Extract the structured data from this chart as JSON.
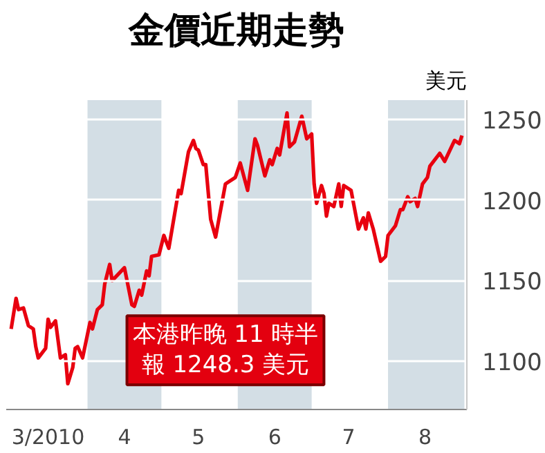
{
  "chart_data": {
    "type": "line",
    "title": "金價近期走勢",
    "ylabel": "美元",
    "x": [
      "2010-03-01",
      "2010-03-03",
      "2010-03-04",
      "2010-03-06",
      "2010-03-08",
      "2010-03-10",
      "2010-03-11",
      "2010-03-12",
      "2010-03-15",
      "2010-03-16",
      "2010-03-17",
      "2010-03-19",
      "2010-03-21",
      "2010-03-23",
      "2010-03-24",
      "2010-03-26",
      "2010-03-27",
      "2010-03-28",
      "2010-03-30",
      "2010-04-02",
      "2010-04-03",
      "2010-04-05",
      "2010-04-07",
      "2010-04-08",
      "2010-04-10",
      "2010-04-11",
      "2010-04-16",
      "2010-04-19",
      "2010-04-20",
      "2010-04-22",
      "2010-04-23",
      "2010-04-25",
      "2010-04-26",
      "2010-04-27",
      "2010-04-30",
      "2010-05-02",
      "2010-05-04",
      "2010-05-08",
      "2010-05-09",
      "2010-05-12",
      "2010-05-14",
      "2010-05-15",
      "2010-05-16",
      "2010-05-18",
      "2010-05-19",
      "2010-05-21",
      "2010-05-23",
      "2010-05-27",
      "2010-05-31",
      "2010-06-02",
      "2010-06-05",
      "2010-06-08",
      "2010-06-09",
      "2010-06-12",
      "2010-06-14",
      "2010-06-15",
      "2010-06-17",
      "2010-06-18",
      "2010-06-21",
      "2010-06-22",
      "2010-06-24",
      "2010-06-27",
      "2010-06-29",
      "2010-07-01",
      "2010-07-02",
      "2010-07-03",
      "2010-07-05",
      "2010-07-06",
      "2010-07-07",
      "2010-07-08",
      "2010-07-10",
      "2010-07-12",
      "2010-07-13",
      "2010-07-14",
      "2010-07-17",
      "2010-07-20",
      "2010-07-22",
      "2010-07-23",
      "2010-07-24",
      "2010-07-26",
      "2010-07-29",
      "2010-07-31",
      "2010-08-01",
      "2010-08-04",
      "2010-08-06",
      "2010-08-07",
      "2010-08-09",
      "2010-08-10",
      "2010-08-12",
      "2010-08-13",
      "2010-08-15",
      "2010-08-17",
      "2010-08-18",
      "2010-08-22",
      "2010-08-24",
      "2010-08-28",
      "2010-08-30",
      "2010-08-31"
    ],
    "series": [
      {
        "color": "#e8000f",
        "values": [
          1120,
          1139,
          1132,
          1133,
          1122,
          1120,
          1109,
          1102,
          1108,
          1126,
          1121,
          1125,
          1102,
          1104,
          1086,
          1096,
          1108,
          1109,
          1102,
          1124,
          1120,
          1132,
          1135,
          1148,
          1160,
          1150,
          1158,
          1135,
          1134,
          1144,
          1141,
          1156,
          1153,
          1165,
          1166,
          1178,
          1170,
          1206,
          1204,
          1230,
          1237,
          1232,
          1231,
          1222,
          1222,
          1188,
          1177,
          1210,
          1214,
          1223,
          1206,
          1238,
          1234,
          1215,
          1225,
          1222,
          1232,
          1228,
          1254,
          1233,
          1236,
          1252,
          1238,
          1241,
          1210,
          1198,
          1209,
          1204,
          1190,
          1198,
          1196,
          1210,
          1196,
          1209,
          1206,
          1182,
          1189,
          1182,
          1192,
          1182,
          1162,
          1165,
          1178,
          1184,
          1194,
          1194,
          1202,
          1199,
          1201,
          1196,
          1210,
          1214,
          1221,
          1229,
          1224,
          1237,
          1235,
          1240
        ]
      }
    ],
    "xlim": [
      "2010-02-27",
      "2010-09-02"
    ],
    "xticks": [
      {
        "value": "2010-03-16",
        "label": "3/2010"
      },
      {
        "value": "2010-04-16",
        "label": "4"
      },
      {
        "value": "2010-05-16",
        "label": "5"
      },
      {
        "value": "2010-06-16",
        "label": "6"
      },
      {
        "value": "2010-07-16",
        "label": "7"
      },
      {
        "value": "2010-08-16",
        "label": "8"
      }
    ],
    "ylim": [
      1070,
      1262
    ],
    "yticks": [
      1100,
      1150,
      1200,
      1250
    ],
    "grid": "y",
    "bands": [
      {
        "axis": "x",
        "from": "2010-04-01",
        "to": "2010-05-01",
        "color": "#d3dee5"
      },
      {
        "axis": "x",
        "from": "2010-06-01",
        "to": "2010-07-01",
        "color": "#d3dee5"
      },
      {
        "axis": "x",
        "from": "2010-08-01",
        "to": "2010-09-01",
        "color": "#d3dee5"
      }
    ],
    "annotations": [
      "本港昨晚 11 時半",
      "報 1248.3 美元"
    ]
  }
}
